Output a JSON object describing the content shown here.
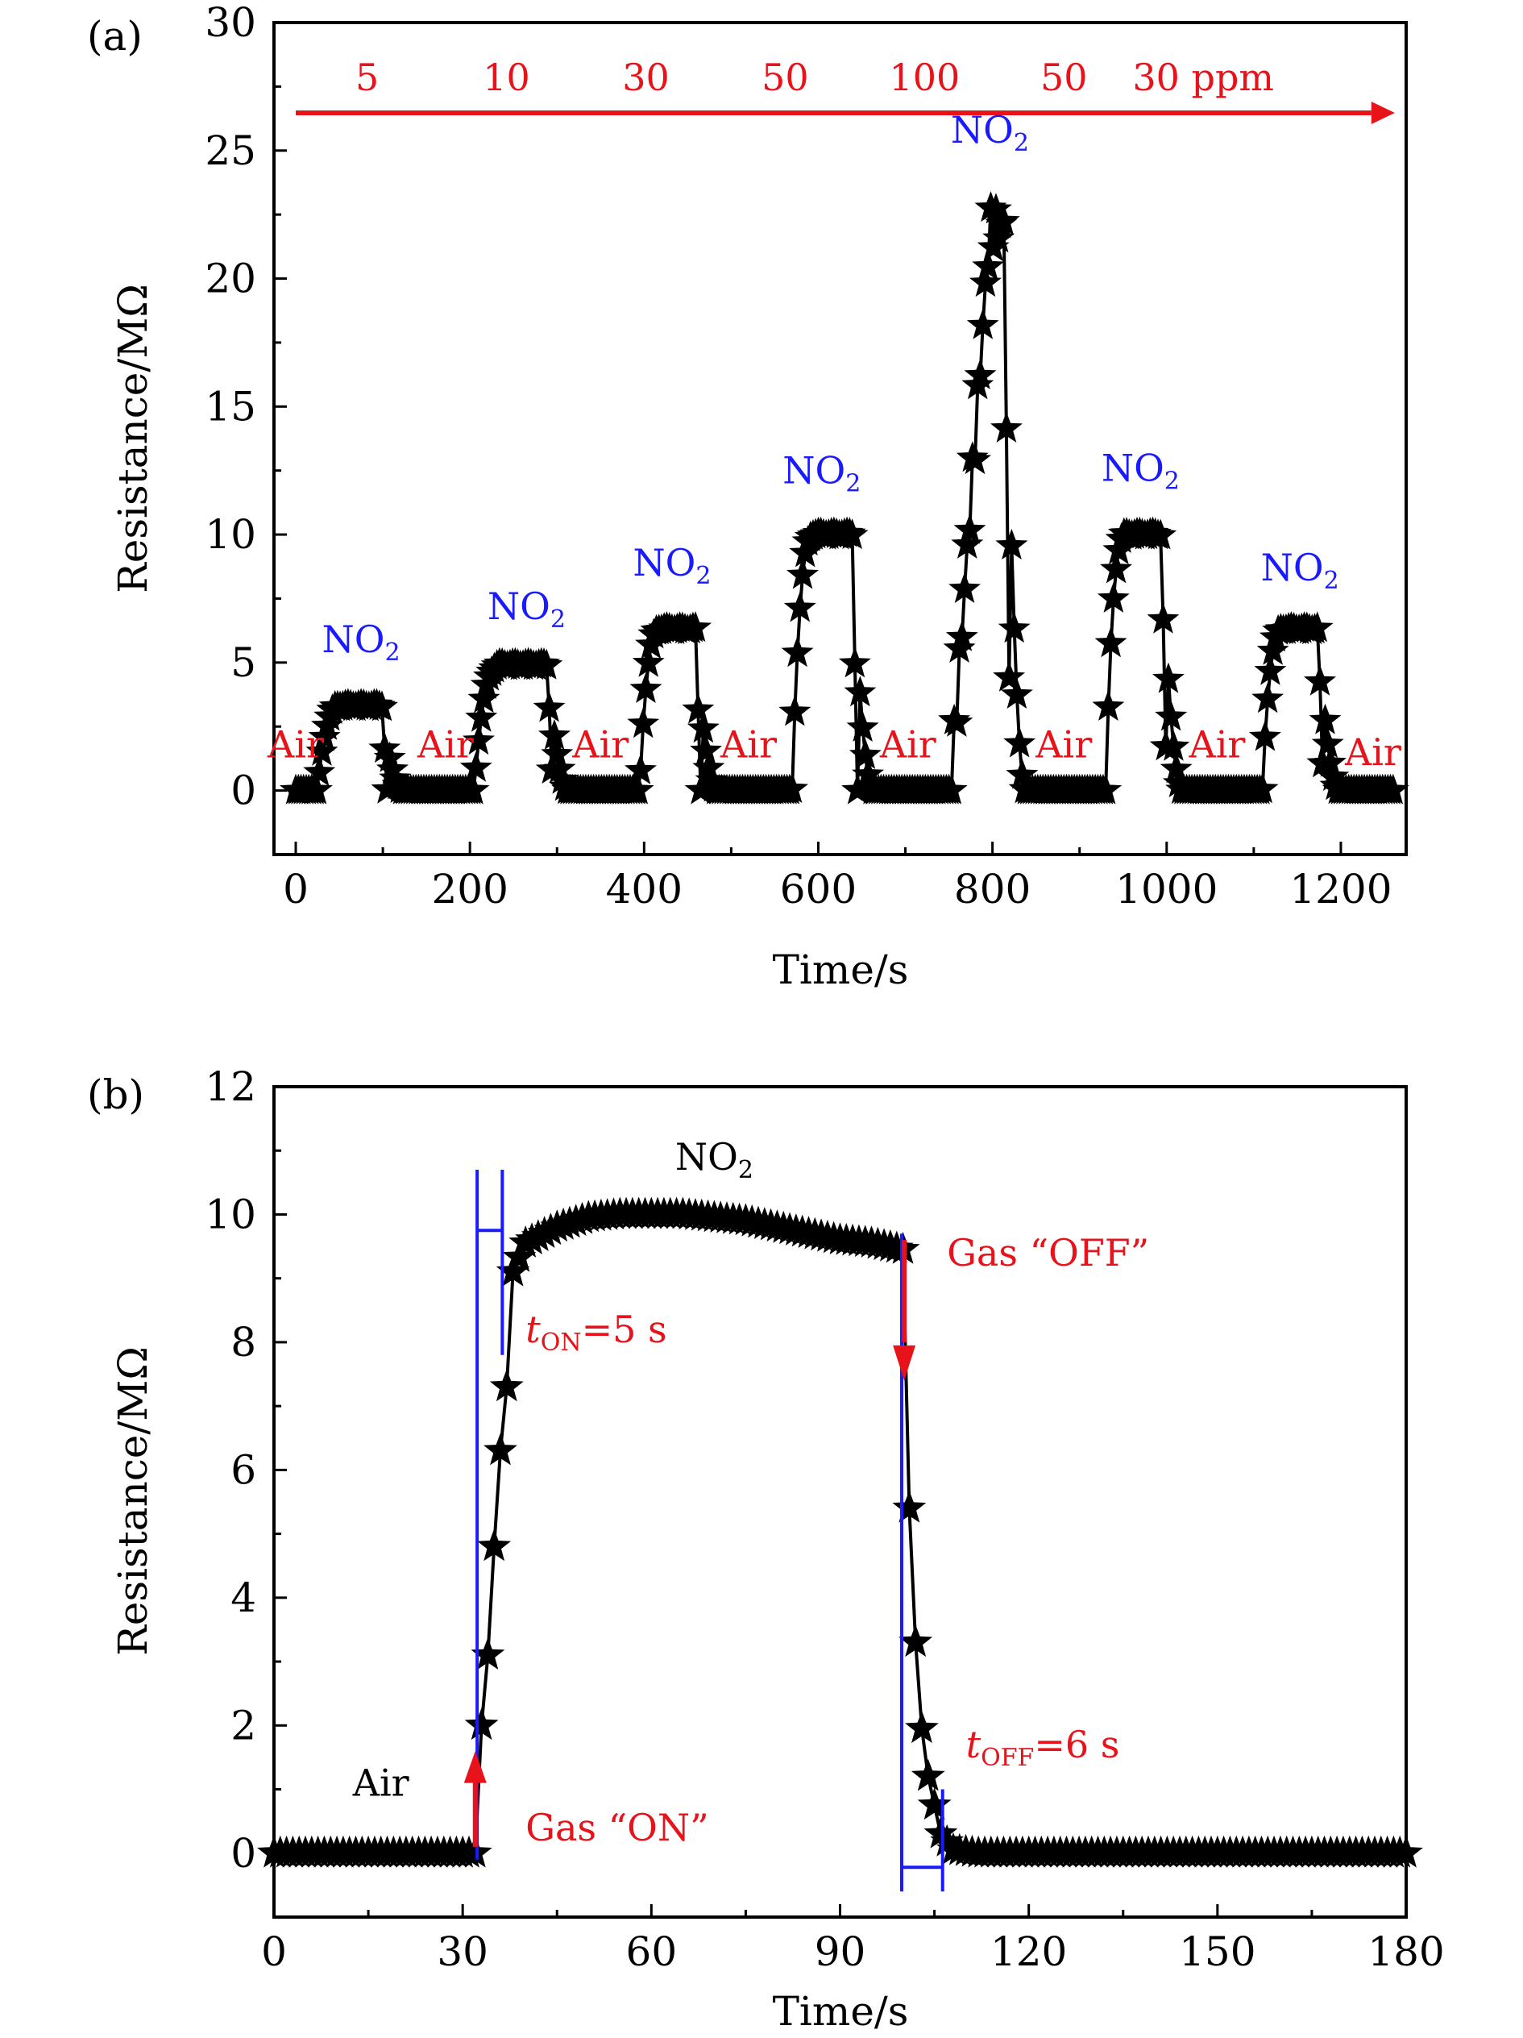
{
  "colors": {
    "red": "#e8121a",
    "blue": "#1a1aff",
    "black": "#000000"
  },
  "chart_data": [
    {
      "panel": "(a)",
      "type": "scatter",
      "marker": "star",
      "xlabel": "Time/s",
      "ylabel": "Resistance/MΩ",
      "xlim": [
        -25,
        1275
      ],
      "ylim": [
        -2.5,
        30
      ],
      "xticks": [
        0,
        200,
        400,
        600,
        800,
        1000,
        1200
      ],
      "yticks": [
        0,
        5,
        10,
        15,
        20,
        25,
        30
      ],
      "concentration_arrow": {
        "labels": [
          "5",
          "10",
          "30",
          "50",
          "100",
          "50",
          "30 ppm"
        ],
        "x": [
          82,
          242,
          402,
          562,
          722,
          882,
          1042
        ]
      },
      "gas_labels": [
        {
          "text": "NO",
          "sub": "2",
          "x": 75,
          "y": 5.4
        },
        {
          "text": "NO",
          "sub": "2",
          "x": 265,
          "y": 6.7
        },
        {
          "text": "NO",
          "sub": "2",
          "x": 432,
          "y": 8.4
        },
        {
          "text": "NO",
          "sub": "2",
          "x": 604,
          "y": 12.0
        },
        {
          "text": "NO",
          "sub": "2",
          "x": 797,
          "y": 25.3
        },
        {
          "text": "NO",
          "sub": "2",
          "x": 970,
          "y": 12.1
        },
        {
          "text": "NO",
          "sub": "2",
          "x": 1153,
          "y": 8.2
        }
      ],
      "air_labels": [
        {
          "text": "Air",
          "x": 0,
          "y": 1.3
        },
        {
          "text": "Air",
          "x": 172,
          "y": 1.3
        },
        {
          "text": "Air",
          "x": 350,
          "y": 1.3
        },
        {
          "text": "Air",
          "x": 520,
          "y": 1.3
        },
        {
          "text": "Air",
          "x": 703,
          "y": 1.3
        },
        {
          "text": "Air",
          "x": 882,
          "y": 1.3
        },
        {
          "text": "Air",
          "x": 1058,
          "y": 1.3
        },
        {
          "text": "Air",
          "x": 1237,
          "y": 1.0
        }
      ],
      "cycles": [
        {
          "ppm": 5,
          "on": 25,
          "off": 105,
          "peak": 3.3
        },
        {
          "ppm": 10,
          "on": 205,
          "off": 295,
          "peak": 4.9
        },
        {
          "ppm": 30,
          "on": 395,
          "off": 465,
          "peak": 6.3
        },
        {
          "ppm": 50,
          "on": 570,
          "off": 645,
          "peak": 10.0
        },
        {
          "ppm": 100,
          "on": 752,
          "off": 820,
          "peak": 22.0
        },
        {
          "ppm": 50,
          "on": 930,
          "off": 1000,
          "peak": 10.0
        },
        {
          "ppm": 30,
          "on": 1110,
          "off": 1180,
          "peak": 6.3
        }
      ],
      "baseline": 0.0,
      "x_end": 1260
    },
    {
      "panel": "(b)",
      "type": "line",
      "marker": "star",
      "xlabel": "Time/s",
      "ylabel": "Resistance/MΩ",
      "xlim": [
        0,
        180
      ],
      "ylim": [
        -1,
        12
      ],
      "xticks": [
        0,
        30,
        60,
        90,
        120,
        150,
        180
      ],
      "yticks": [
        0,
        2,
        4,
        6,
        8,
        10,
        12
      ],
      "gas_on": 32,
      "gas_off": 100,
      "steady_x": [
        0,
        32,
        33,
        34,
        35,
        36,
        37,
        38,
        40,
        45,
        50,
        55,
        60,
        65,
        70,
        75,
        80,
        85,
        90,
        95,
        100,
        101,
        102,
        103,
        104,
        105,
        106,
        108,
        112,
        120,
        140,
        160,
        180
      ],
      "steady_y": [
        0,
        0,
        2.0,
        3.1,
        4.8,
        6.3,
        7.3,
        9.1,
        9.55,
        9.8,
        9.95,
        10.0,
        10.0,
        10.0,
        9.95,
        9.9,
        9.8,
        9.7,
        9.6,
        9.55,
        9.45,
        5.4,
        3.3,
        1.95,
        1.2,
        0.75,
        0.3,
        0.05,
        0,
        0,
        0,
        0,
        0
      ],
      "labels": {
        "nox": {
          "text": "NO",
          "sub": "2",
          "x": 70,
          "y": 10.7
        },
        "air": {
          "text": "Air",
          "x": 17,
          "y": 0.9
        },
        "gas_on": {
          "text": "Gas “ON”",
          "x": 40,
          "y": 0.2
        },
        "gas_off": {
          "text": "Gas “OFF”",
          "x": 107,
          "y": 9.2
        },
        "t_on": {
          "t": "t",
          "sub": "ON",
          "rest": "=5 s",
          "x": 40,
          "y": 8.0
        },
        "t_off": {
          "t": "t",
          "sub": "OFF",
          "rest": "=6 s",
          "x": 110,
          "y": 1.5
        }
      }
    }
  ]
}
